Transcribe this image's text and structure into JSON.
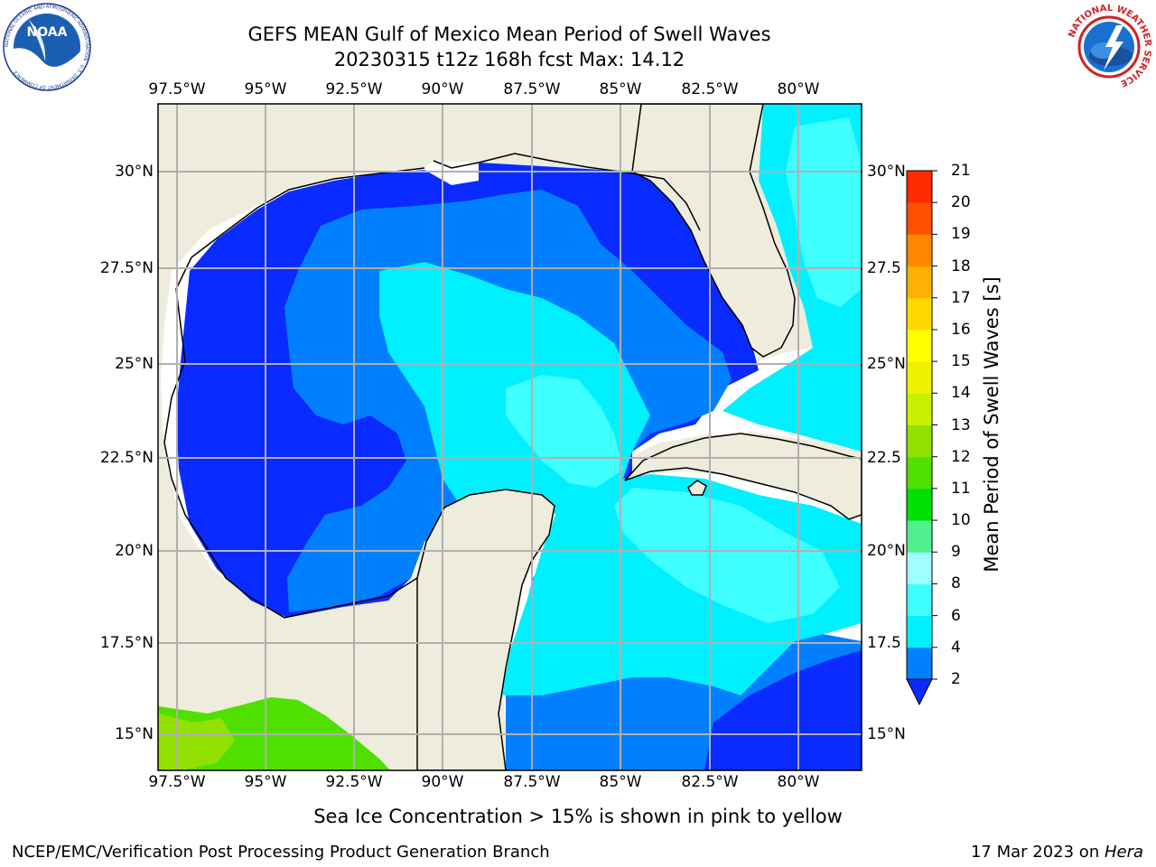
{
  "header": {
    "title_line1": "GEFS MEAN Gulf of Mexico Mean Period of Swell Waves",
    "title_line2": "20230315 t12z 168h fcst   Max: 14.12"
  },
  "logos": {
    "left": "NOAA",
    "left_ring_text": "NATIONAL OCEANIC AND ATMOSPHERIC ADMINISTRATION · U.S. DEPARTMENT OF COMMERCE",
    "right_ring_text": "NATIONAL WEATHER SERVICE"
  },
  "map": {
    "lon_labels": [
      "97.5°W",
      "95°W",
      "92.5°W",
      "90°W",
      "87.5°W",
      "85°W",
      "82.5°W",
      "80°W"
    ],
    "lat_labels_left": [
      "30°N",
      "27.5°N",
      "25°N",
      "22.5°N",
      "20°N",
      "17.5°N",
      "15°N"
    ],
    "lat_labels_right": [
      "30°N",
      "27.5",
      "25°N",
      "22.5",
      "20°N",
      "17.5",
      "15°N"
    ],
    "colors": {
      "land": "#eeecdc",
      "ocean_no_data": "#ffffff",
      "grid": "#b0b0b0"
    }
  },
  "colorbar": {
    "label": "Mean Period of Swell Waves [s]",
    "tick_labels": [
      "2",
      "4",
      "6",
      "8",
      "9",
      "10",
      "11",
      "12",
      "13",
      "14",
      "15",
      "16",
      "17",
      "18",
      "19",
      "20",
      "21"
    ],
    "colors": [
      "#0a2bff",
      "#0080ff",
      "#00f0ff",
      "#40ffff",
      "#a0ffff",
      "#50f090",
      "#00e000",
      "#50e000",
      "#90e000",
      "#c8f000",
      "#eef000",
      "#ffff00",
      "#ffd800",
      "#ffb000",
      "#ff8800",
      "#ff5000",
      "#ff2a00",
      "#ff0000"
    ]
  },
  "footer": {
    "note": "Sea Ice Concentration > 15% is shown in pink to yellow",
    "credit_left": "NCEP/EMC/Verification Post Processing Product Generation Branch",
    "credit_right_date": "17 Mar 2023 on ",
    "credit_right_machine": "Hera"
  }
}
